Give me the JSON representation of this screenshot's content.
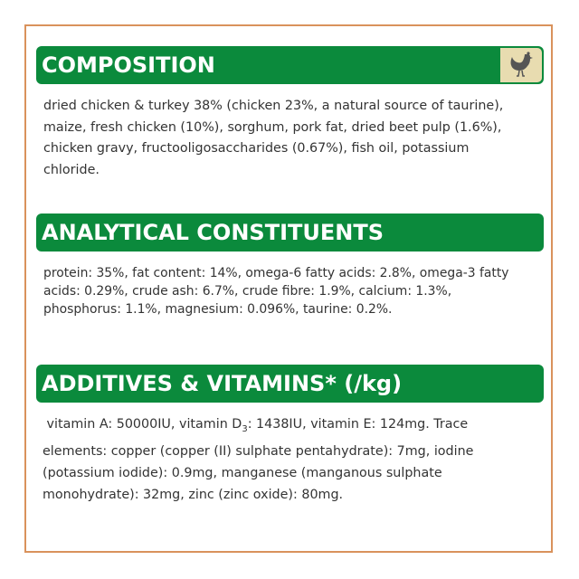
{
  "colors": {
    "border": "#d9925c",
    "header_bg": "#0b8a3c",
    "icon_bg": "#e8dcb0",
    "text": "#333333"
  },
  "composition": {
    "title": "COMPOSITION",
    "icon": "chicken-icon",
    "lines": [
      "dried chicken & turkey 38% (chicken 23%, a natural source of taurine),",
      "maize, fresh chicken (10%), sorghum, pork fat, dried beet pulp (1.6%),",
      "chicken gravy, fructooligosaccharides (0.67%), fish oil, potassium",
      "chloride."
    ]
  },
  "analytical": {
    "title": "ANALYTICAL CONSTITUENTS",
    "lines": [
      "protein: 35%, fat content: 14%, omega-6 fatty acids: 2.8%, omega-3 fatty",
      "acids: 0.29%, crude ash: 6.7%, crude fibre: 1.9%, calcium: 1.3%,",
      "phosphorus: 1.1%, magnesium: 0.096%, taurine: 0.2%."
    ]
  },
  "additives": {
    "title": "ADDITIVES & VITAMINS* (/kg)",
    "line1_a": " vitamin A: 50000IU, vitamin D",
    "line1_sub": "3",
    "line1_b": ": 1438IU, vitamin E: 124mg. Trace",
    "lines": [
      "elements: copper (copper (II) sulphate pentahydrate): 7mg, iodine",
      "(potassium iodide): 0.9mg, manganese (manganous sulphate",
      "monohydrate): 32mg, zinc (zinc oxide): 80mg."
    ]
  }
}
